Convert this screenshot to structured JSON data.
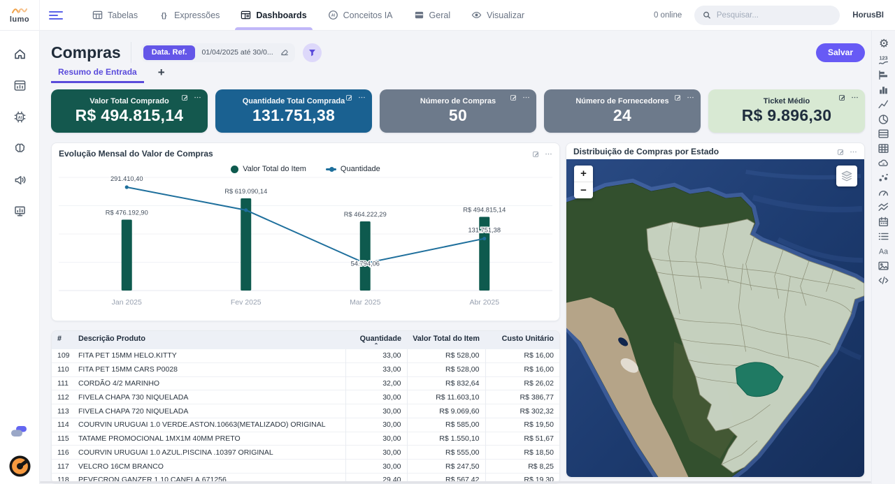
{
  "navbar": {
    "logo_text": "lumo",
    "menu_items": [
      {
        "label": "Tabelas",
        "icon": "table-window",
        "active": false
      },
      {
        "label": "Expressões",
        "icon": "braces",
        "active": false
      },
      {
        "label": "Dashboards",
        "icon": "dashboard",
        "active": true
      },
      {
        "label": "Conceitos IA",
        "icon": "ai-badge",
        "active": false
      },
      {
        "label": "Geral",
        "icon": "window",
        "active": false
      },
      {
        "label": "Visualizar",
        "icon": "eye",
        "active": false
      }
    ],
    "online_status": "0 online",
    "search_placeholder": "Pesquisar...",
    "workspace_name": "HorusBI"
  },
  "left_rail": {
    "icons": [
      "home",
      "dashboard-window",
      "ai-chip",
      "brain",
      "megaphone",
      "presentation-chart"
    ],
    "footer_icons": [
      "cloud-sync",
      "gauge-logo"
    ]
  },
  "right_rail": {
    "icons": [
      "gear",
      "numbers-trend",
      "bar-chart-horizontal",
      "bar-chart-vertical",
      "line-chart",
      "pie-chart",
      "table-rows",
      "table-grid",
      "ai-group",
      "scatter-plot",
      "gauge",
      "multi-line-chart",
      "calendar",
      "list",
      "typography",
      "image",
      "code"
    ]
  },
  "header": {
    "title": "Compras",
    "date_ref_label": "Data. Ref.",
    "date_ref_value": "01/04/2025 até 30/0...",
    "save_button": "Salvar"
  },
  "tabs": {
    "active_tab": "Resumo de Entrada",
    "add_tab": "+"
  },
  "kpis": [
    {
      "label": "Valor Total Comprado",
      "value": "R$ 494.815,14",
      "bg": "#14584e",
      "fg": "#ffffff"
    },
    {
      "label": "Quantidade Total Comprada",
      "value": "131.751,38",
      "bg": "#1a6191",
      "fg": "#ffffff"
    },
    {
      "label": "Número de Compras",
      "value": "50",
      "bg": "#6d7a8b",
      "fg": "#ffffff"
    },
    {
      "label": "Número de Fornecedores",
      "value": "24",
      "bg": "#6d7a8b",
      "fg": "#ffffff"
    },
    {
      "label": "Ticket Médio",
      "value": "R$ 9.896,30",
      "bg": "#d8e9d3",
      "fg": "#1f2d3d"
    }
  ],
  "chart_data": {
    "type": "bar+line",
    "title": "Evolução Mensal do Valor de Compras",
    "categories": [
      "Jan 2025",
      "Fev 2025",
      "Mar 2025",
      "Abr 2025"
    ],
    "series": [
      {
        "name": "Valor Total do Item",
        "type": "bar",
        "color": "#0e5a4e",
        "values": [
          476192.9,
          619090.14,
          464222.29,
          494815.14
        ],
        "labels": [
          "R$ 476.192,90",
          "R$ 619.090,14",
          "R$ 464.222,29",
          "R$ 494.815,14"
        ]
      },
      {
        "name": "Quantidade",
        "type": "line",
        "color": "#1e6f9c",
        "values": [
          291410.4,
          220000,
          54794.06,
          131751.38
        ],
        "labels": [
          "291.410,40",
          "",
          "54.794,06",
          "131.751,38"
        ]
      }
    ],
    "legend_position": "top",
    "grid": true
  },
  "map_panel": {
    "title": "Distribuição de Compras por Estado",
    "zoom_in": "+",
    "zoom_out": "−",
    "state_fill": "#cbd5c5",
    "highlight_fill": "#1f7a63"
  },
  "table": {
    "columns": [
      "#",
      "Descrição Produto",
      "Quantidade",
      "Valor Total do Item",
      "Custo Unitário"
    ],
    "sort_column": "Quantidade",
    "rows": [
      [
        "109",
        "FITA PET 15MM HELO.KITTY",
        "33,00",
        "R$ 528,00",
        "R$ 16,00"
      ],
      [
        "110",
        "FITA PET 15MM CARS P0028",
        "33,00",
        "R$ 528,00",
        "R$ 16,00"
      ],
      [
        "111",
        "CORDÃO 4/2 MARINHO",
        "32,00",
        "R$ 832,64",
        "R$ 26,02"
      ],
      [
        "112",
        "FIVELA CHAPA 730 NIQUELADA",
        "30,00",
        "R$ 11.603,10",
        "R$ 386,77"
      ],
      [
        "113",
        "FIVELA CHAPA 720 NIQUELADA",
        "30,00",
        "R$ 9.069,60",
        "R$ 302,32"
      ],
      [
        "114",
        "COURVIN URUGUAI 1.0 VERDE.ASTON.10663(METALIZADO) ORIGINAL",
        "30,00",
        "R$ 585,00",
        "R$ 19,50"
      ],
      [
        "115",
        "TATAME PROMOCIONAL 1MX1M 40MM PRETO",
        "30,00",
        "R$ 1.550,10",
        "R$ 51,67"
      ],
      [
        "116",
        "COURVIN URUGUAI 1.0 AZUL.PISCINA .10397 ORIGINAL",
        "30,00",
        "R$ 555,00",
        "R$ 18,50"
      ],
      [
        "117",
        "VELCRO 16CM BRANCO",
        "30,00",
        "R$ 247,50",
        "R$ 8,25"
      ],
      [
        "118",
        "PEVECRON GANZER 1,10 CANELA.671256",
        "29,40",
        "R$ 567,42",
        "R$ 19,30"
      ]
    ]
  }
}
